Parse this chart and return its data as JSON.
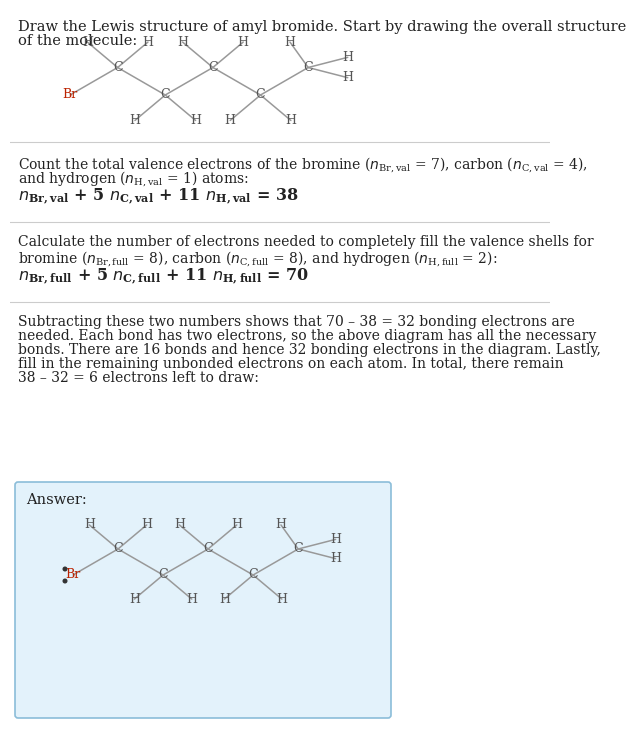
{
  "bg_color": "#ffffff",
  "answer_bg": "#e3f2fb",
  "answer_border": "#8bbdd9",
  "line_color": "#cccccc",
  "bond_color": "#999999",
  "br_color": "#bb2200",
  "atom_color": "#555555",
  "text_color": "#222222",
  "title_line1": "Draw the Lewis structure of amyl bromide. Start by drawing the overall structure",
  "title_line2": "of the molecule:",
  "s1_line1": "Count the total valence electrons of the bromine (",
  "s1_line2": "and hydrogen (",
  "s1_line3": " = 1) atoms:",
  "s2_line1": "Calculate the number of electrons needed to completely fill the valence shells for",
  "s2_line2": "bromine (",
  "s3_lines": [
    "Subtracting these two numbers shows that 70 – 38 = 32 bonding electrons are",
    "needed. Each bond has two electrons, so the above diagram has all the necessary",
    "bonds. There are 16 bonds and hence 32 bonding electrons in the diagram. Lastly,",
    "fill in the remaining unbonded electrons on each atom. In total, there remain",
    "38 – 32 = 6 electrons left to draw:"
  ],
  "answer_label": "Answer:"
}
